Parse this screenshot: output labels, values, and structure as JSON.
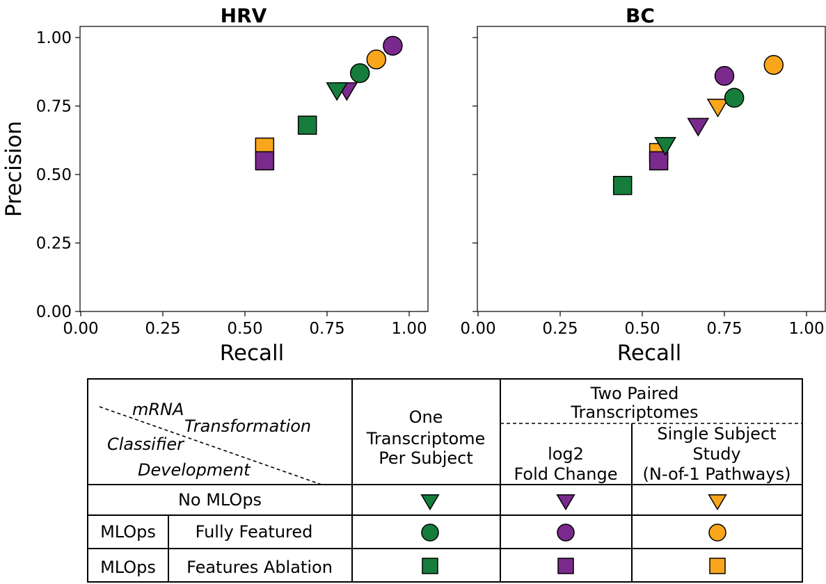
{
  "colors": {
    "green": "#167d3c",
    "purple": "#7a2a8c",
    "orange": "#f9a61d"
  },
  "chart_data": [
    {
      "type": "scatter",
      "title": "HRV",
      "xlabel": "Recall",
      "ylabel": "Precision",
      "xlim": [
        0,
        1
      ],
      "ylim": [
        0,
        1
      ],
      "xticks": [
        "0.00",
        "0.25",
        "0.50",
        "0.75",
        "1.00"
      ],
      "yticks": [
        "0.00",
        "0.25",
        "0.50",
        "0.75",
        "1.00"
      ],
      "grid": false,
      "points": [
        {
          "marker": "square",
          "color": "orange",
          "x": 0.56,
          "y": 0.6
        },
        {
          "marker": "square",
          "color": "purple",
          "x": 0.56,
          "y": 0.55
        },
        {
          "marker": "square",
          "color": "green",
          "x": 0.69,
          "y": 0.68
        },
        {
          "marker": "triangle",
          "color": "purple",
          "x": 0.81,
          "y": 0.81
        },
        {
          "marker": "triangle",
          "color": "green",
          "x": 0.78,
          "y": 0.81
        },
        {
          "marker": "circle",
          "color": "green",
          "x": 0.85,
          "y": 0.87
        },
        {
          "marker": "circle",
          "color": "orange",
          "x": 0.9,
          "y": 0.92
        },
        {
          "marker": "circle",
          "color": "purple",
          "x": 0.95,
          "y": 0.97
        }
      ]
    },
    {
      "type": "scatter",
      "title": "BC",
      "xlabel": "Recall",
      "ylabel": "",
      "xlim": [
        0,
        1
      ],
      "ylim": [
        0,
        1
      ],
      "xticks": [
        "0.00",
        "0.25",
        "0.50",
        "0.75",
        "1.00"
      ],
      "yticks": [],
      "grid": false,
      "points": [
        {
          "marker": "square",
          "color": "green",
          "x": 0.44,
          "y": 0.46
        },
        {
          "marker": "square",
          "color": "orange",
          "x": 0.55,
          "y": 0.58
        },
        {
          "marker": "square",
          "color": "purple",
          "x": 0.55,
          "y": 0.55
        },
        {
          "marker": "triangle",
          "color": "green",
          "x": 0.57,
          "y": 0.61
        },
        {
          "marker": "triangle",
          "color": "purple",
          "x": 0.67,
          "y": 0.68
        },
        {
          "marker": "triangle",
          "color": "orange",
          "x": 0.73,
          "y": 0.75
        },
        {
          "marker": "circle",
          "color": "purple",
          "x": 0.75,
          "y": 0.86
        },
        {
          "marker": "circle",
          "color": "green",
          "x": 0.78,
          "y": 0.78
        },
        {
          "marker": "circle",
          "color": "orange",
          "x": 0.9,
          "y": 0.9
        }
      ]
    }
  ],
  "legend_table": {
    "corner": {
      "line1": "mRNA",
      "line2": "Transformation",
      "line3": "Classifier",
      "line4": "Development"
    },
    "col_one": [
      "One",
      "Transcriptome",
      "Per Subject"
    ],
    "col_group": [
      "Two Paired",
      "Transcriptomes"
    ],
    "col_log2": [
      "log2",
      "Fold Change"
    ],
    "col_sss": [
      "Single Subject",
      "Study",
      "(N-of-1 Pathways)"
    ],
    "rows": [
      {
        "label": "No MLOps",
        "sublabel": "",
        "marker": "triangle"
      },
      {
        "label": "MLOps",
        "sublabel": "Fully Featured",
        "marker": "circle"
      },
      {
        "label": "MLOps",
        "sublabel": "Features Ablation",
        "marker": "square"
      }
    ],
    "column_colors": [
      "green",
      "purple",
      "orange"
    ]
  }
}
